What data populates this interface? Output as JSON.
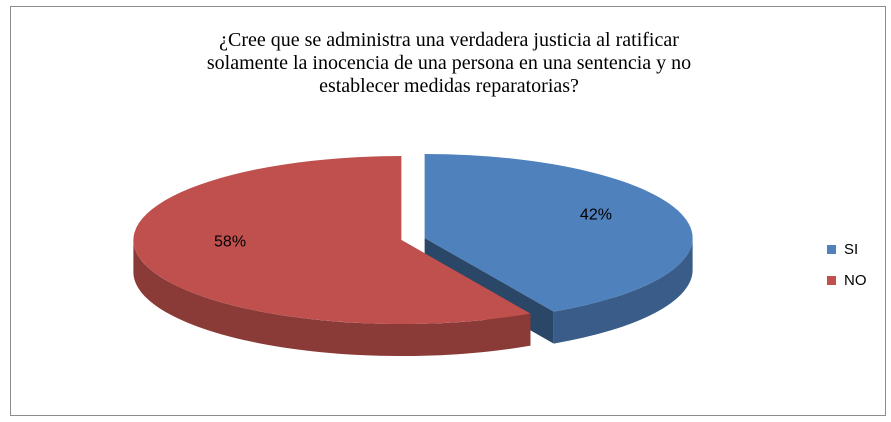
{
  "chart_data": {
    "type": "pie",
    "title_lines": [
      "¿Cree que se administra una verdadera justicia al ratificar",
      "solamente la inocencia de una persona en una sentencia y no",
      "establecer medidas reparatorias?"
    ],
    "categories": [
      "SI",
      "NO"
    ],
    "values": [
      42,
      58
    ],
    "data_labels": [
      "42%",
      "58%"
    ],
    "colors": [
      "#4f81bd",
      "#c0504d"
    ],
    "legend_position": "right",
    "style": "3d-exploded"
  }
}
